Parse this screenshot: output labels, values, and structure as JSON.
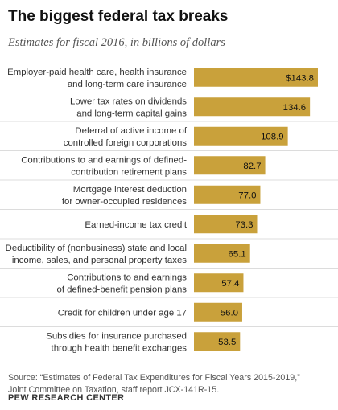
{
  "title": "The biggest federal tax breaks",
  "subtitle": "Estimates for fiscal 2016, in billions of dollars",
  "source_lines": [
    "Source: “Estimates of Federal Tax Expenditures for Fiscal Years 2015-2019,”",
    "Joint Committee on Taxation, staff report JCX-141R-15."
  ],
  "brand": "PEW RESEARCH CENTER",
  "colors": {
    "bar": "#c9a13b",
    "row_divider": "#dcdcdc"
  },
  "chart_data": {
    "type": "bar",
    "orientation": "horizontal",
    "categories": [
      [
        "Employer-paid health care, health insurance",
        "and long-term care insurance"
      ],
      [
        "Lower tax rates on dividends",
        "and long-term capital gains"
      ],
      [
        "Deferral of active income of",
        "controlled foreign corporations"
      ],
      [
        "Contributions to and earnings of defined-",
        "contribution retirement plans"
      ],
      [
        "Mortgage interest deduction",
        "for owner-occupied residences"
      ],
      [
        "Earned-income tax credit"
      ],
      [
        "Deductibility of (nonbusiness) state and local",
        "income, sales, and personal property taxes"
      ],
      [
        "Contributions to and earnings",
        "of defined-benefit pension plans"
      ],
      [
        "Credit for children under age 17"
      ],
      [
        "Subsidies for insurance purchased",
        "through health benefit exchanges"
      ]
    ],
    "values": [
      143.8,
      134.6,
      108.9,
      82.7,
      77.0,
      73.3,
      65.1,
      57.4,
      56.0,
      53.5
    ],
    "value_labels": [
      "$143.8",
      "134.6",
      "108.9",
      "82.7",
      "77.0",
      "73.3",
      "65.1",
      "57.4",
      "56.0",
      "53.5"
    ],
    "xlim": [
      0,
      143.8
    ],
    "grid": false,
    "legend": "none"
  }
}
